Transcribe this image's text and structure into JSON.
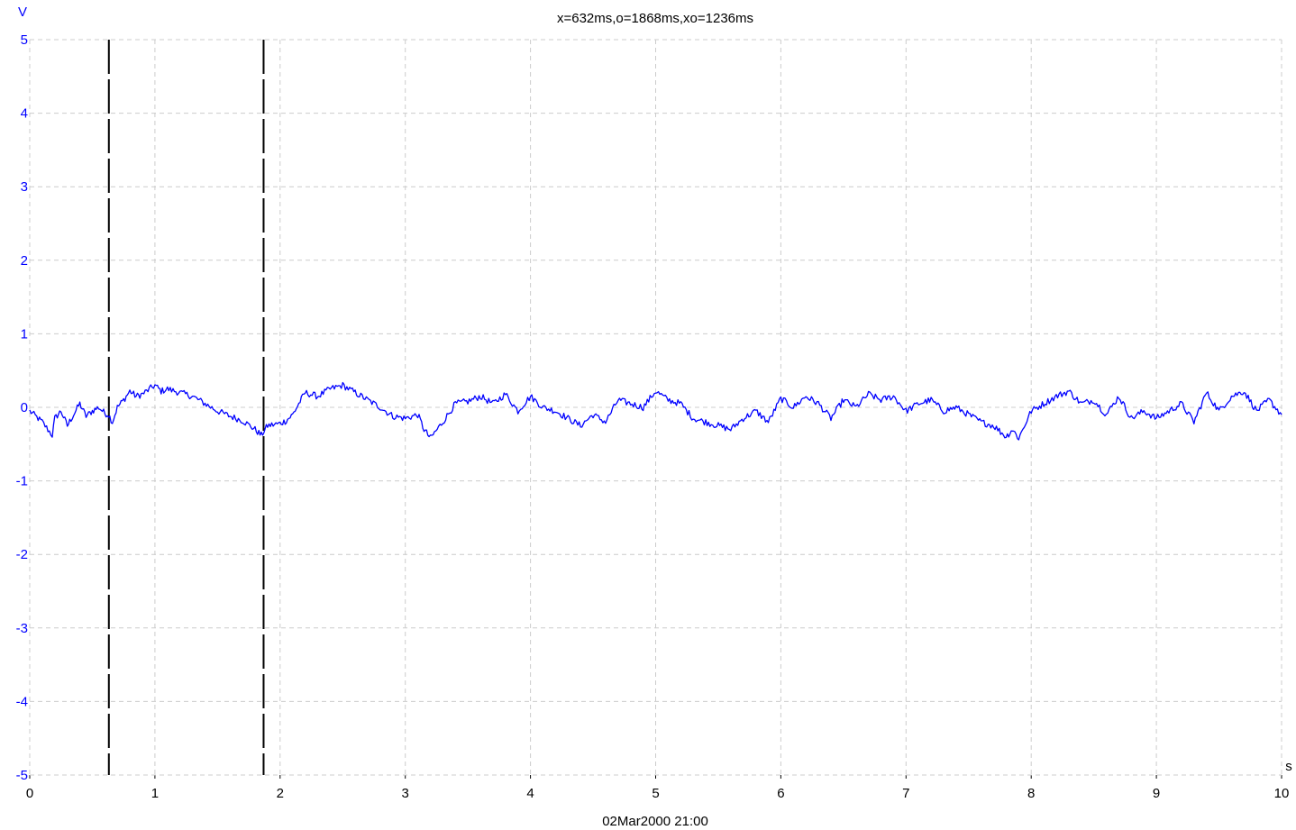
{
  "chart_data": {
    "type": "line",
    "title": "x=632ms,o=1868ms,xo=1236ms",
    "footer": "02Mar2000  21:00",
    "ylabel": "V",
    "xlabel": "s",
    "xlim": [
      0,
      10
    ],
    "ylim": [
      -5,
      5
    ],
    "xticks": [
      "0",
      "1",
      "2",
      "3",
      "4",
      "5",
      "6",
      "7",
      "8",
      "9",
      "10"
    ],
    "yticks": [
      "5",
      "4",
      "3",
      "2",
      "1",
      "0",
      "-1",
      "-2",
      "-3",
      "-4",
      "-5"
    ],
    "grid": true,
    "cursors": {
      "x_ms": 632,
      "o_ms": 1868,
      "xo_ms": 1236
    },
    "colors": {
      "trace": "#0000ff",
      "y_axis_text": "#0000ff",
      "grid": "#cccccc",
      "cursor": "#000000"
    },
    "series": [
      {
        "x": [
          0,
          0.1,
          0.18,
          0.2,
          0.25,
          0.3,
          0.35,
          0.4,
          0.45,
          0.5,
          0.55,
          0.6,
          0.63,
          0.66,
          0.7,
          0.75,
          0.8,
          0.85,
          0.9,
          1.0,
          1.05,
          1.1,
          1.2,
          1.3,
          1.4,
          1.5,
          1.6,
          1.7,
          1.8,
          1.85,
          1.9,
          2.0,
          2.05,
          2.1,
          2.15,
          2.2,
          2.3,
          2.4,
          2.5,
          2.6,
          2.7,
          2.8,
          2.9,
          3.0,
          3.1,
          3.15,
          3.2,
          3.3,
          3.4,
          3.5,
          3.6,
          3.7,
          3.8,
          3.9,
          4.0,
          4.1,
          4.2,
          4.3,
          4.4,
          4.5,
          4.6,
          4.7,
          4.8,
          4.9,
          5.0,
          5.1,
          5.2,
          5.3,
          5.4,
          5.5,
          5.6,
          5.7,
          5.8,
          5.9,
          6.0,
          6.1,
          6.2,
          6.3,
          6.4,
          6.5,
          6.6,
          6.7,
          6.8,
          6.9,
          7.0,
          7.1,
          7.2,
          7.3,
          7.4,
          7.5,
          7.6,
          7.7,
          7.8,
          7.85,
          7.9,
          8.0,
          8.1,
          8.2,
          8.3,
          8.4,
          8.5,
          8.6,
          8.7,
          8.8,
          8.9,
          9.0,
          9.1,
          9.2,
          9.3,
          9.4,
          9.5,
          9.6,
          9.7,
          9.8,
          9.9,
          10.0
        ],
        "y": [
          -0.05,
          -0.2,
          -0.38,
          -0.15,
          -0.05,
          -0.25,
          -0.1,
          0.05,
          -0.12,
          -0.05,
          0.0,
          -0.08,
          -0.1,
          -0.2,
          0.0,
          0.1,
          0.22,
          0.15,
          0.18,
          0.3,
          0.22,
          0.25,
          0.2,
          0.15,
          0.05,
          -0.05,
          -0.12,
          -0.18,
          -0.3,
          -0.38,
          -0.25,
          -0.22,
          -0.18,
          -0.1,
          0.05,
          0.2,
          0.15,
          0.25,
          0.3,
          0.2,
          0.1,
          0.0,
          -0.12,
          -0.15,
          -0.1,
          -0.3,
          -0.42,
          -0.2,
          0.05,
          0.08,
          0.15,
          0.05,
          0.18,
          -0.05,
          0.15,
          0.0,
          -0.05,
          -0.15,
          -0.25,
          -0.1,
          -0.2,
          0.1,
          0.05,
          0.0,
          0.22,
          0.1,
          0.05,
          -0.15,
          -0.2,
          -0.25,
          -0.3,
          -0.15,
          -0.05,
          -0.2,
          0.12,
          0.0,
          0.15,
          0.05,
          -0.15,
          0.1,
          0.0,
          0.18,
          0.1,
          0.15,
          -0.05,
          0.05,
          0.1,
          -0.05,
          0.0,
          -0.1,
          -0.2,
          -0.25,
          -0.4,
          -0.3,
          -0.42,
          -0.05,
          0.05,
          0.15,
          0.22,
          0.05,
          0.1,
          -0.1,
          0.15,
          -0.15,
          -0.05,
          -0.15,
          -0.05,
          0.05,
          -0.2,
          0.2,
          -0.05,
          0.15,
          0.22,
          -0.05,
          0.1,
          -0.1
        ]
      }
    ]
  }
}
